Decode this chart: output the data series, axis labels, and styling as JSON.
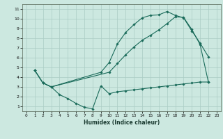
{
  "xlabel": "Humidex (Indice chaleur)",
  "bg_color": "#cce8e0",
  "grid_color": "#aaccc4",
  "line_color": "#1a6b5a",
  "xlim": [
    -0.5,
    23.5
  ],
  "ylim": [
    0.5,
    11.5
  ],
  "xticks": [
    0,
    1,
    2,
    3,
    4,
    5,
    6,
    7,
    8,
    9,
    10,
    11,
    12,
    13,
    14,
    15,
    16,
    17,
    18,
    19,
    20,
    21,
    22,
    23
  ],
  "yticks": [
    1,
    2,
    3,
    4,
    5,
    6,
    7,
    8,
    9,
    10,
    11
  ],
  "curve1_x": [
    1,
    2,
    3,
    9,
    10,
    11,
    12,
    13,
    14,
    15,
    16,
    17,
    18,
    19,
    20,
    21,
    22
  ],
  "curve1_y": [
    4.7,
    3.4,
    3.0,
    4.5,
    5.5,
    7.4,
    8.6,
    9.4,
    10.1,
    10.35,
    10.4,
    10.75,
    10.35,
    10.1,
    8.75,
    7.5,
    6.1
  ],
  "curve2_x": [
    1,
    2,
    3,
    10,
    11,
    12,
    13,
    14,
    15,
    16,
    17,
    18,
    19,
    20,
    21,
    22
  ],
  "curve2_y": [
    4.7,
    3.4,
    3.0,
    4.5,
    5.4,
    6.3,
    7.1,
    7.8,
    8.3,
    8.85,
    9.5,
    10.2,
    10.15,
    8.9,
    7.35,
    3.5
  ],
  "curve3_x": [
    1,
    2,
    3,
    4,
    5,
    6,
    7,
    8,
    9,
    10,
    11,
    12,
    13,
    14,
    15,
    16,
    17,
    18,
    19,
    20,
    21,
    22
  ],
  "curve3_y": [
    4.7,
    3.4,
    3.0,
    2.2,
    1.8,
    1.3,
    0.9,
    0.75,
    3.1,
    2.3,
    2.5,
    2.6,
    2.7,
    2.8,
    2.9,
    3.0,
    3.1,
    3.2,
    3.3,
    3.4,
    3.5,
    3.5
  ]
}
